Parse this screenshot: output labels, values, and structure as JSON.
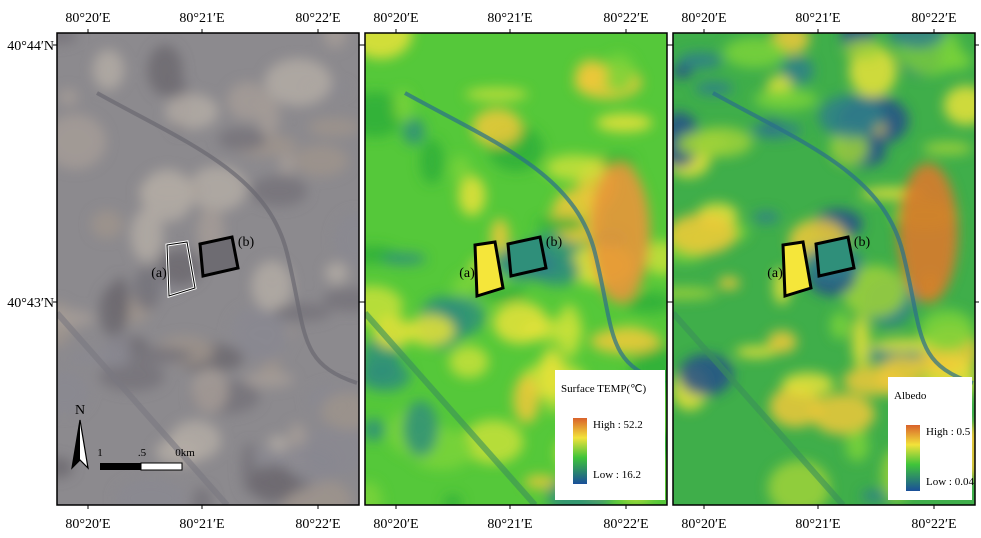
{
  "lon_labels": [
    "80°20′E",
    "80°21′E",
    "80°22′E"
  ],
  "lat_labels": [
    "40°44′N",
    "40°43′N"
  ],
  "site_labels": [
    "(a)",
    "(b)"
  ],
  "north": "N",
  "scale_labels": [
    "1",
    ".5",
    "0km"
  ],
  "legends": [
    {
      "title": "Surface TEMP(℃)",
      "high": "High : 52.2",
      "low": "Low : 16.2"
    },
    {
      "title": "Albedo",
      "high": "High : 0.5",
      "low": "Low : 0.04"
    }
  ]
}
